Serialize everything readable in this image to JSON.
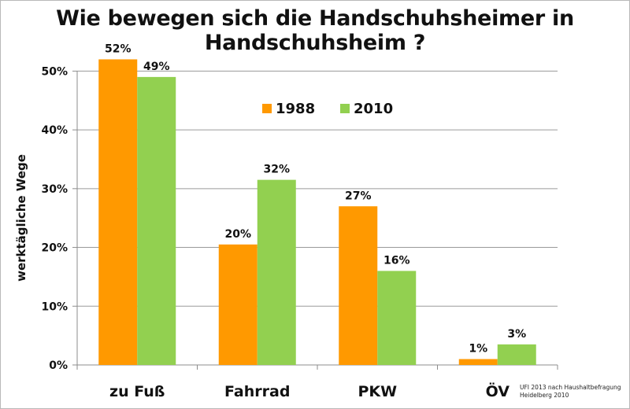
{
  "chart_data": {
    "type": "bar",
    "title": "Wie bewegen sich die Handschuhsheimer in Handschuhsheim ?",
    "xlabel": "",
    "ylabel": "werktägliche Wege",
    "categories": [
      "zu Fuß",
      "Fahrrad",
      "PKW",
      "ÖV"
    ],
    "series": [
      {
        "name": "1988",
        "color": "#ff9900",
        "values": [
          0.52,
          0.205,
          0.27,
          0.01
        ],
        "labels": [
          "52%",
          "20%",
          "27%",
          "1%"
        ]
      },
      {
        "name": "2010",
        "color": "#92d050",
        "values": [
          0.49,
          0.315,
          0.16,
          0.035
        ],
        "labels": [
          "49%",
          "32%",
          "16%",
          "3%"
        ]
      }
    ],
    "ylim": [
      0,
      0.5
    ],
    "yticks": [
      0,
      0.1,
      0.2,
      0.3,
      0.4,
      0.5
    ],
    "ytick_labels": [
      "0%",
      "10%",
      "20%",
      "30%",
      "40%",
      "50%"
    ],
    "grid": true,
    "legend_position": "center-right"
  },
  "source_note": {
    "line1": "UFI 2013 nach Haushaltbefragung",
    "line2": "Heidelberg 2010"
  }
}
